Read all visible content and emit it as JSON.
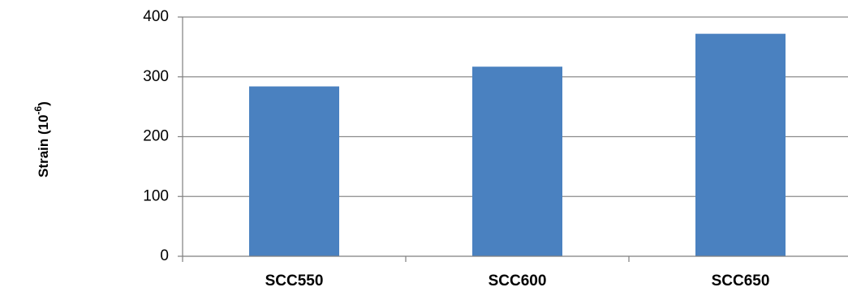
{
  "chart_data": {
    "type": "bar",
    "categories": [
      "SCC550",
      "SCC600",
      "SCC650"
    ],
    "values": [
      284,
      317,
      372
    ],
    "ylabel_main": "Strain (10",
    "ylabel_exp": "-6",
    "ylabel_close": ")",
    "ylim": [
      0,
      400
    ],
    "yticks": [
      "0",
      "100",
      "200",
      "300",
      "400"
    ],
    "grid": true,
    "bar_color": "#4a81c0"
  }
}
